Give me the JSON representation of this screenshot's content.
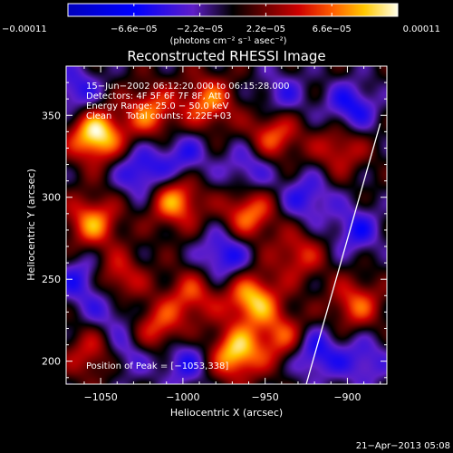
{
  "chart_data": {
    "type": "heatmap",
    "title": "Reconstructed RHESSI Image",
    "xlabel": "Heliocentric X (arcsec)",
    "ylabel": "Heliocentric Y (arcsec)",
    "xlim": [
      -1071,
      -876
    ],
    "ylim": [
      186,
      380
    ],
    "x_ticks": [
      -1050,
      -1000,
      -950,
      -900
    ],
    "x_tick_labels": [
      "−1050",
      "−1000",
      "−950",
      "−900"
    ],
    "y_ticks": [
      200,
      250,
      300,
      350
    ],
    "y_tick_labels": [
      "200",
      "250",
      "300",
      "350"
    ],
    "colorbar": {
      "min": -0.00011,
      "max": 0.00011,
      "tick_values": [
        -0.00011,
        -6.6e-05,
        -2.2e-05,
        2.2e-05,
        6.6e-05,
        0.00011
      ],
      "tick_labels": [
        "−0.00011",
        "−6.6e−05",
        "−2.2e−05",
        "2.2e−05",
        "6.6e−05",
        "0.00011"
      ],
      "unit_label": "(photons cm⁻² s⁻¹ asec⁻²)"
    },
    "annotations": [
      "15−Jun−2002 06:12:20.000 to 06:15:28.000",
      "Detectors: 4F 5F 6F 7F 8F, Att 0",
      "Energy Range: 25.0 − 50.0 keV",
      "Clean     Total counts: 2.22E+03"
    ],
    "peak_label": "Position of Peak = [−1053,338]",
    "peak_position": [
      -1053,
      338
    ],
    "limb": {
      "x": [
        -925,
        -880
      ],
      "y": [
        186,
        345
      ]
    },
    "hotspots": [
      {
        "x": -1053,
        "y": 338,
        "value": 0.00011
      },
      {
        "x": -1005,
        "y": 298,
        "value": 8e-05
      },
      {
        "x": -1055,
        "y": 285,
        "value": 7.5e-05
      },
      {
        "x": -960,
        "y": 290,
        "value": 7.2e-05
      },
      {
        "x": -985,
        "y": 358,
        "value": 7e-05
      },
      {
        "x": -1020,
        "y": 352,
        "value": 6.8e-05
      },
      {
        "x": -945,
        "y": 338,
        "value": 6.6e-05
      },
      {
        "x": -1040,
        "y": 250,
        "value": 6e-05
      },
      {
        "x": -958,
        "y": 238,
        "value": 9e-05
      },
      {
        "x": -968,
        "y": 205,
        "value": 9.5e-05
      },
      {
        "x": -940,
        "y": 215,
        "value": 6e-05
      },
      {
        "x": -1015,
        "y": 220,
        "value": 6e-05
      },
      {
        "x": -995,
        "y": 240,
        "value": 5.5e-05
      },
      {
        "x": -895,
        "y": 235,
        "value": 6e-05
      },
      {
        "x": -905,
        "y": 330,
        "value": 5e-05
      },
      {
        "x": -1055,
        "y": 205,
        "value": 5e-05
      },
      {
        "x": -930,
        "y": 265,
        "value": 5e-05
      },
      {
        "x": -1025,
        "y": 315,
        "value": -6e-05
      },
      {
        "x": -1062,
        "y": 250,
        "value": -5e-05
      },
      {
        "x": -975,
        "y": 265,
        "value": -6e-05
      },
      {
        "x": -925,
        "y": 300,
        "value": -5e-05
      },
      {
        "x": -898,
        "y": 355,
        "value": -6e-05
      },
      {
        "x": -960,
        "y": 318,
        "value": -4.5e-05
      },
      {
        "x": -895,
        "y": 280,
        "value": -5e-05
      },
      {
        "x": -1000,
        "y": 200,
        "value": -5e-05
      },
      {
        "x": -1035,
        "y": 205,
        "value": -4e-05
      },
      {
        "x": -1045,
        "y": 232,
        "value": -4e-05
      },
      {
        "x": -920,
        "y": 205,
        "value": -6e-05
      },
      {
        "x": -1000,
        "y": 325,
        "value": -4.5e-05
      },
      {
        "x": -940,
        "y": 362,
        "value": -4e-05
      },
      {
        "x": -1065,
        "y": 365,
        "value": -5e-05
      },
      {
        "x": -890,
        "y": 200,
        "value": -4.5e-05
      }
    ]
  },
  "footer": {
    "timestamp": "21−Apr−2013 05:08"
  }
}
